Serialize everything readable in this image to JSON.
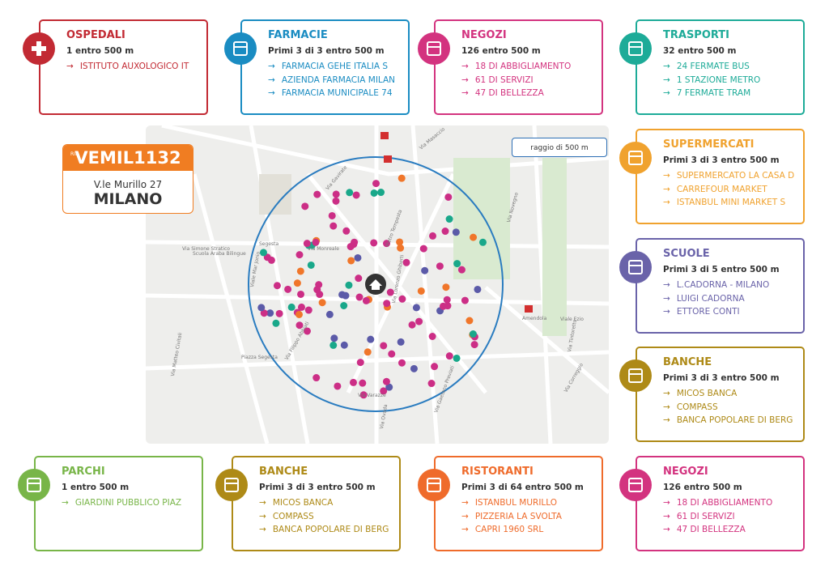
{
  "listing": {
    "ref_prefix": "RIF",
    "code": "VEMIL1132",
    "address": "V.le Murillo 27",
    "city": "MILANO"
  },
  "map": {
    "radius_label": "raggio di 500 m",
    "street_labels": [
      "Via Monreale",
      "Via Simone Stratico",
      "Scuola Araba Bilingue",
      "Segesta",
      "Viale Mar Jonio",
      "Via Filippo Abbiati",
      "Via Varazze",
      "Via Ovada",
      "Amendola",
      "Viale Ezio",
      "Via Tintoretto",
      "Via Correggio",
      "Via Matteo Civitali",
      "Via Gavirate",
      "Piazza Segesta",
      "Via Lorenzo Ghiberti",
      "Pietro Tempesta",
      "Via Gaetano Previati",
      "Via Novegno",
      "Via Masaccio"
    ]
  },
  "cards": [
    {
      "title": "OSPEDALI",
      "subtitle": "1 entro 500 m",
      "items": [
        "ISTITUTO AUXOLOGICO IT"
      ],
      "color": "#c22a33"
    },
    {
      "title": "FARMACIE",
      "subtitle": "Primi 3 di 3 entro 500 m",
      "items": [
        "FARMACIA GEHE ITALIA S",
        "AZIENDA FARMACIA MILAN",
        "FARMACIA MUNICIPALE 74"
      ],
      "color": "#1a8cc2"
    },
    {
      "title": "NEGOZI",
      "subtitle": "126 entro 500 m",
      "items": [
        "18 DI ABBIGLIAMENTO",
        "61 DI SERVIZI",
        "47 DI BELLEZZA"
      ],
      "color": "#d3337f"
    },
    {
      "title": "TRASPORTI",
      "subtitle": "32 entro 500 m",
      "items": [
        "24 FERMATE BUS",
        "1 STAZIONE METRO",
        "7 FERMATE TRAM"
      ],
      "color": "#1dab98"
    },
    {
      "title": "SUPERMERCATI",
      "subtitle": "Primi 3 di 3 entro 500 m",
      "items": [
        "SUPERMERCATO LA CASA D",
        "CARREFOUR MARKET",
        "ISTANBUL MINI MARKET S"
      ],
      "color": "#f0a22e"
    },
    {
      "title": "SCUOLE",
      "subtitle": "Primi 3 di 5 entro 500 m",
      "items": [
        "L.CADORNA - MILANO",
        "LUIGI CADORNA",
        "ETTORE CONTI"
      ],
      "color": "#6a63a9"
    },
    {
      "title": "BANCHE",
      "subtitle": "Primi 3 di 3 entro 500 m",
      "items": [
        "MICOS BANCA",
        "COMPASS",
        "BANCA POPOLARE DI BERG"
      ],
      "color": "#ae8a17"
    },
    {
      "title": "PARCHI",
      "subtitle": "1 entro 500 m",
      "items": [
        "GIARDINI PUBBLICO PIAZ"
      ],
      "color": "#78b548"
    },
    {
      "title": "BANCHE",
      "subtitle": "Primi 3 di 3 entro 500 m",
      "items": [
        "MICOS BANCA",
        "COMPASS",
        "BANCA POPOLARE DI BERG"
      ],
      "color": "#ae8a17"
    },
    {
      "title": "RISTORANTI",
      "subtitle": "Primi 3 di 64 entro 500 m",
      "items": [
        "ISTANBUL MURILLO",
        "PIZZERIA LA SVOLTA",
        "CAPRI 1960 SRL"
      ],
      "color": "#ef6b2b"
    },
    {
      "title": "NEGOZI",
      "subtitle": "126 entro 500 m",
      "items": [
        "18 DI ABBIGLIAMENTO",
        "61 DI SERVIZI",
        "47 DI BELLEZZA"
      ],
      "color": "#d3337f"
    }
  ]
}
